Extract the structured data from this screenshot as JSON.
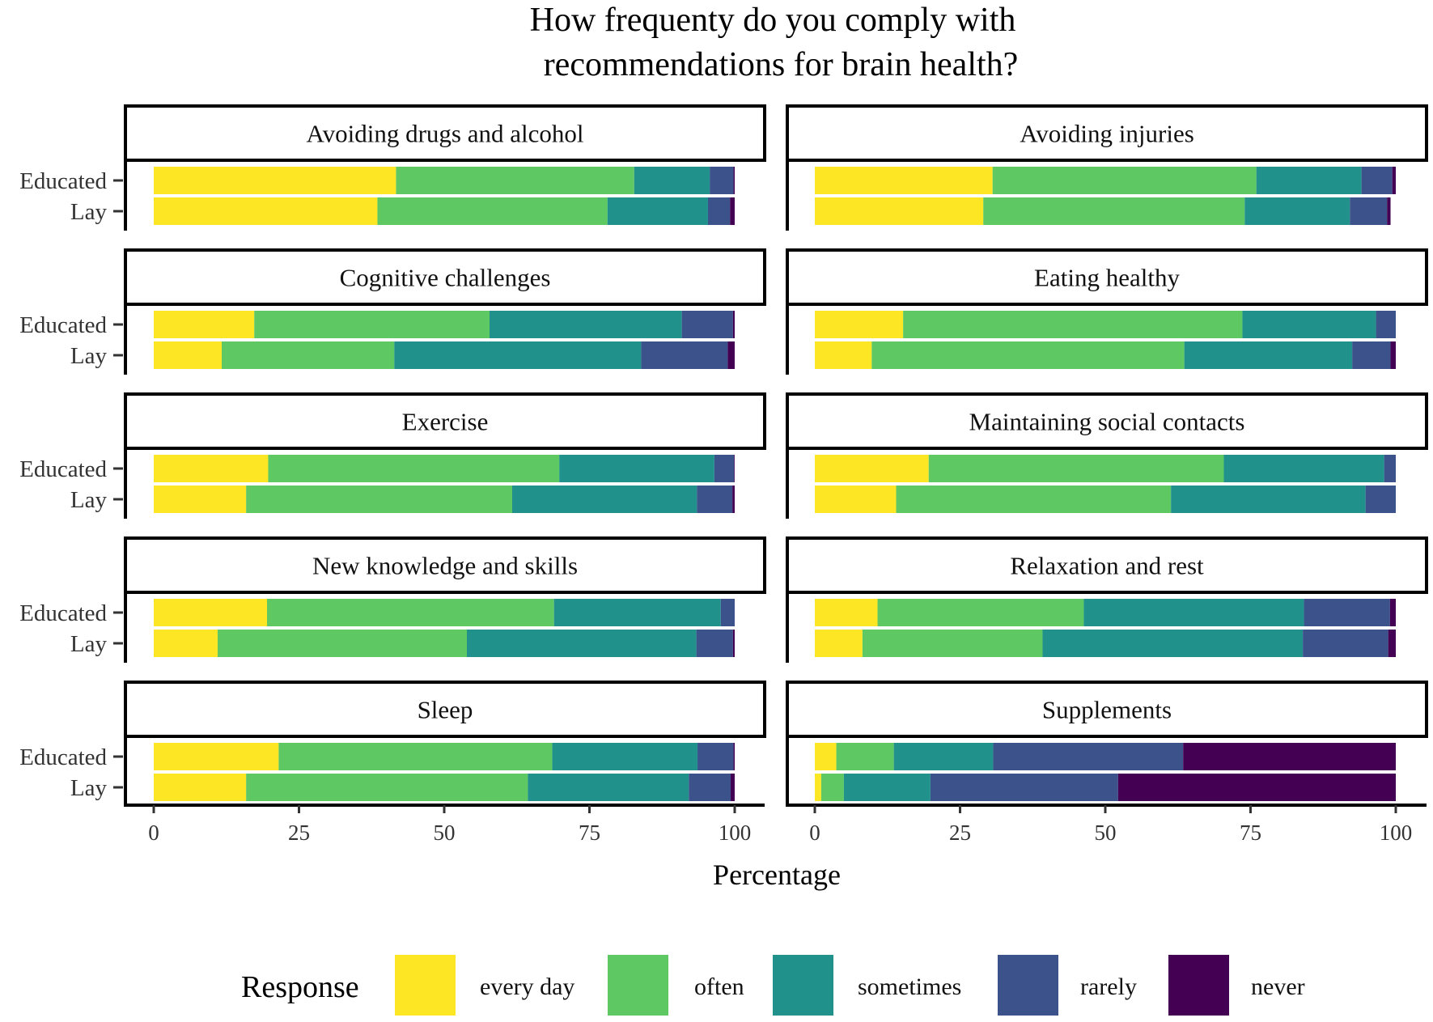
{
  "chart_data": {
    "type": "bar",
    "orientation": "horizontal",
    "stacked": true,
    "title_lines": [
      "How frequenty do you comply with",
      "recommendations for brain health?"
    ],
    "xlabel": "Percentage",
    "xlim": [
      0,
      100
    ],
    "xticks": [
      0,
      25,
      50,
      75,
      100
    ],
    "grid": false,
    "groups": [
      "Educated",
      "Lay"
    ],
    "legend": {
      "title": "Response",
      "position": "bottom",
      "entries": [
        {
          "label": "every day",
          "color": "#fde725"
        },
        {
          "label": "often",
          "color": "#5ec962"
        },
        {
          "label": "sometimes",
          "color": "#21918c"
        },
        {
          "label": "rarely",
          "color": "#3b528b"
        },
        {
          "label": "never",
          "color": "#440154"
        }
      ]
    },
    "facets": [
      {
        "title": "Avoiding drugs and alcohol",
        "rows": [
          {
            "group": "Educated",
            "values": [
              41.7,
              41.0,
              13.0,
              4.1,
              0.2
            ]
          },
          {
            "group": "Lay",
            "values": [
              38.5,
              39.6,
              17.3,
              3.8,
              0.8
            ]
          }
        ]
      },
      {
        "title": "Avoiding injuries",
        "rows": [
          {
            "group": "Educated",
            "values": [
              30.6,
              45.4,
              18.1,
              5.3,
              0.6
            ]
          },
          {
            "group": "Lay",
            "values": [
              29.0,
              45.0,
              18.1,
              6.4,
              0.6
            ]
          }
        ]
      },
      {
        "title": "Cognitive challenges",
        "rows": [
          {
            "group": "Educated",
            "values": [
              17.3,
              40.5,
              33.1,
              8.8,
              0.3
            ]
          },
          {
            "group": "Lay",
            "values": [
              11.7,
              29.7,
              42.5,
              14.9,
              1.2
            ]
          }
        ]
      },
      {
        "title": "Eating healthy",
        "rows": [
          {
            "group": "Educated",
            "values": [
              15.2,
              58.4,
              23.0,
              3.4,
              0.0
            ]
          },
          {
            "group": "Lay",
            "values": [
              9.8,
              53.8,
              28.9,
              6.6,
              0.9
            ]
          }
        ]
      },
      {
        "title": "Exercise",
        "rows": [
          {
            "group": "Educated",
            "values": [
              19.7,
              50.1,
              26.7,
              3.4,
              0.1
            ]
          },
          {
            "group": "Lay",
            "values": [
              15.9,
              45.8,
              31.8,
              6.1,
              0.4
            ]
          }
        ]
      },
      {
        "title": "Maintaining social contacts",
        "rows": [
          {
            "group": "Educated",
            "values": [
              19.6,
              50.8,
              27.6,
              2.0,
              0.0
            ]
          },
          {
            "group": "Lay",
            "values": [
              14.0,
              47.3,
              33.5,
              5.2,
              0.0
            ]
          }
        ]
      },
      {
        "title": "New knowledge and skills",
        "rows": [
          {
            "group": "Educated",
            "values": [
              19.5,
              49.4,
              28.7,
              2.4,
              0.0
            ]
          },
          {
            "group": "Lay",
            "values": [
              11.0,
              42.9,
              39.5,
              6.3,
              0.3
            ]
          }
        ]
      },
      {
        "title": "Relaxation and rest",
        "rows": [
          {
            "group": "Educated",
            "values": [
              10.8,
              35.5,
              37.9,
              14.8,
              1.0
            ]
          },
          {
            "group": "Lay",
            "values": [
              8.2,
              31.0,
              44.8,
              14.7,
              1.3
            ]
          }
        ]
      },
      {
        "title": "Sleep",
        "rows": [
          {
            "group": "Educated",
            "values": [
              21.5,
              47.1,
              25.0,
              6.2,
              0.2
            ]
          },
          {
            "group": "Lay",
            "values": [
              15.9,
              48.5,
              27.7,
              7.2,
              0.7
            ]
          }
        ]
      },
      {
        "title": "Supplements",
        "rows": [
          {
            "group": "Educated",
            "values": [
              3.7,
              9.9,
              17.1,
              32.7,
              36.6
            ]
          },
          {
            "group": "Lay",
            "values": [
              1.1,
              3.9,
              14.9,
              32.3,
              47.8
            ]
          }
        ]
      }
    ]
  }
}
